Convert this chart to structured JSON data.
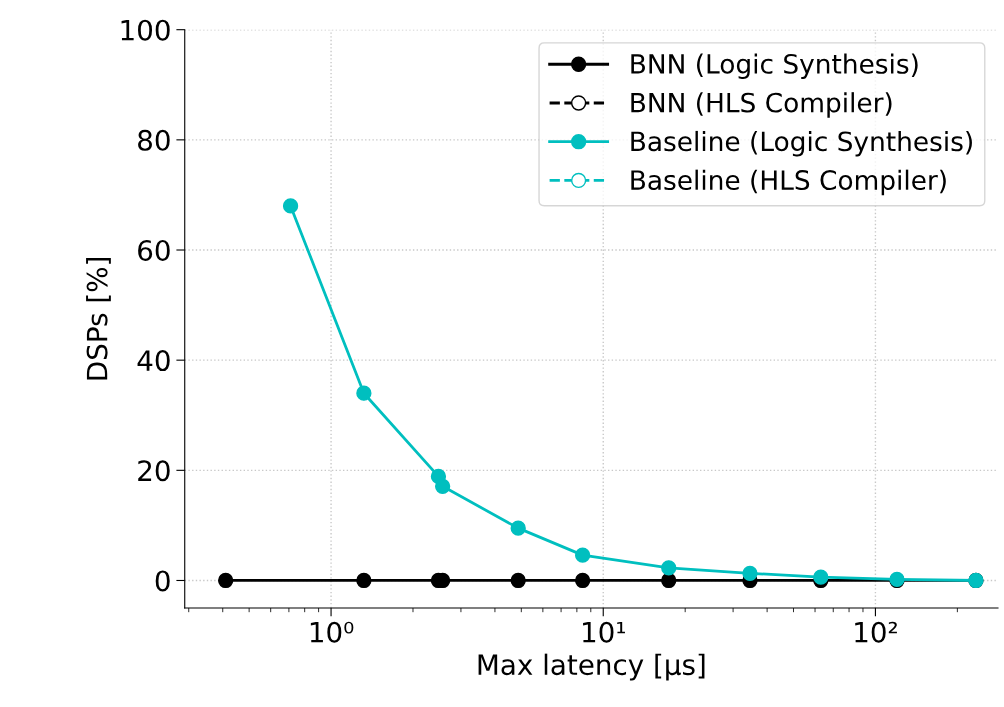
{
  "chart_data": {
    "type": "line",
    "xlabel": "Max latency [μs]",
    "ylabel": "DSPs [%]",
    "log": "x",
    "xlim": [
      0.29,
      282
    ],
    "xticks": [
      {
        "value": 1,
        "label": "10⁰"
      },
      {
        "value": 10,
        "label": "10¹"
      },
      {
        "value": 100,
        "label": "10²"
      }
    ],
    "ylim": [
      -5,
      100
    ],
    "yticks": [
      0,
      20,
      40,
      60,
      80,
      100
    ],
    "grid": true,
    "legend": "top right",
    "marker": "circle",
    "series": [
      {
        "name": "BNN (Logic Synthesis)",
        "color": "#000000",
        "line_style": "solid",
        "x": [
          0.41,
          1.32,
          2.48,
          2.57,
          4.87,
          8.4,
          17.4,
          34.6,
          63,
          120,
          234
        ],
        "values": [
          0,
          0,
          0,
          0,
          0,
          0,
          0,
          0,
          0,
          0,
          0
        ]
      },
      {
        "name": "BNN (HLS Compiler)",
        "color": "#000000",
        "line_style": "dashed"
      },
      {
        "name": "Baseline (Logic Synthesis)",
        "color": "#00bfbf",
        "line_style": "solid",
        "x": [
          0.71,
          1.32,
          2.48,
          2.57,
          4.87,
          8.4,
          17.4,
          34.6,
          63,
          120,
          234
        ],
        "values": [
          68,
          34,
          18.9,
          17.1,
          9.5,
          4.6,
          2.3,
          1.3,
          0.6,
          0.2,
          0
        ]
      },
      {
        "name": "Baseline (HLS Compiler)",
        "color": "#00bfbf",
        "line_style": "dashed"
      }
    ]
  }
}
